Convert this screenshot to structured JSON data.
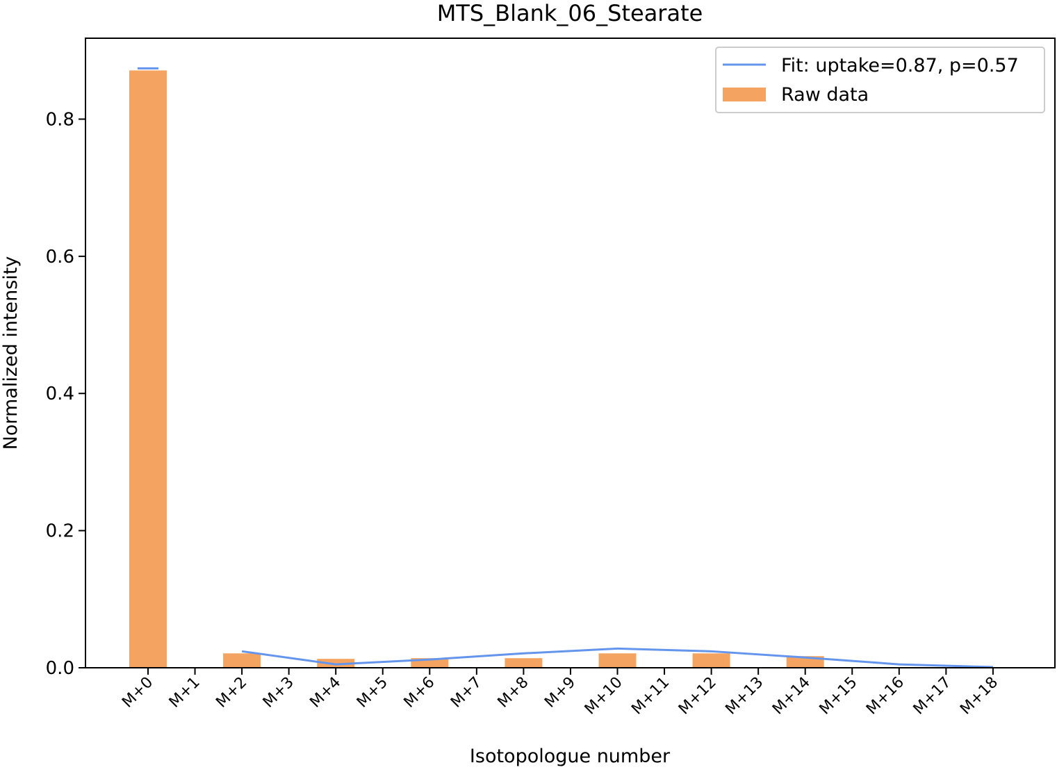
{
  "chart_data": {
    "type": "bar",
    "title": "MTS_Blank_06_Stearate",
    "xlabel": "Isotopologue number",
    "ylabel": "Normalized intensity",
    "ylim": [
      0,
      0.918
    ],
    "yticks": [
      0.0,
      0.2,
      0.4,
      0.6,
      0.8
    ],
    "ytick_labels": [
      "0.0",
      "0.2",
      "0.4",
      "0.6",
      "0.8"
    ],
    "categories": [
      "M+0",
      "M+1",
      "M+2",
      "M+3",
      "M+4",
      "M+5",
      "M+6",
      "M+7",
      "M+8",
      "M+9",
      "M+10",
      "M+11",
      "M+12",
      "M+13",
      "M+14",
      "M+15",
      "M+16",
      "M+17",
      "M+18"
    ],
    "grid": false,
    "legend_position": "top-right",
    "series": [
      {
        "name": "Raw data",
        "kind": "bar",
        "color": "#f4a460",
        "values": [
          0.871,
          0,
          0.021,
          0,
          0.013,
          0,
          0.014,
          0,
          0.014,
          0,
          0.021,
          0,
          0.021,
          0,
          0.017,
          0,
          0,
          0,
          0
        ]
      },
      {
        "name": "Fit: uptake=0.87, p=0.57",
        "kind": "line",
        "color": "#6495ed",
        "segments": [
          {
            "categories": [
              "M+0"
            ],
            "values": [
              0.874
            ]
          },
          {
            "categories": [
              "M+2",
              "M+4",
              "M+6",
              "M+8",
              "M+10",
              "M+12",
              "M+14",
              "M+16",
              "M+18"
            ],
            "values": [
              0.024,
              0.005,
              0.012,
              0.021,
              0.028,
              0.024,
              0.015,
              0.005,
              0.001
            ]
          }
        ]
      }
    ]
  }
}
